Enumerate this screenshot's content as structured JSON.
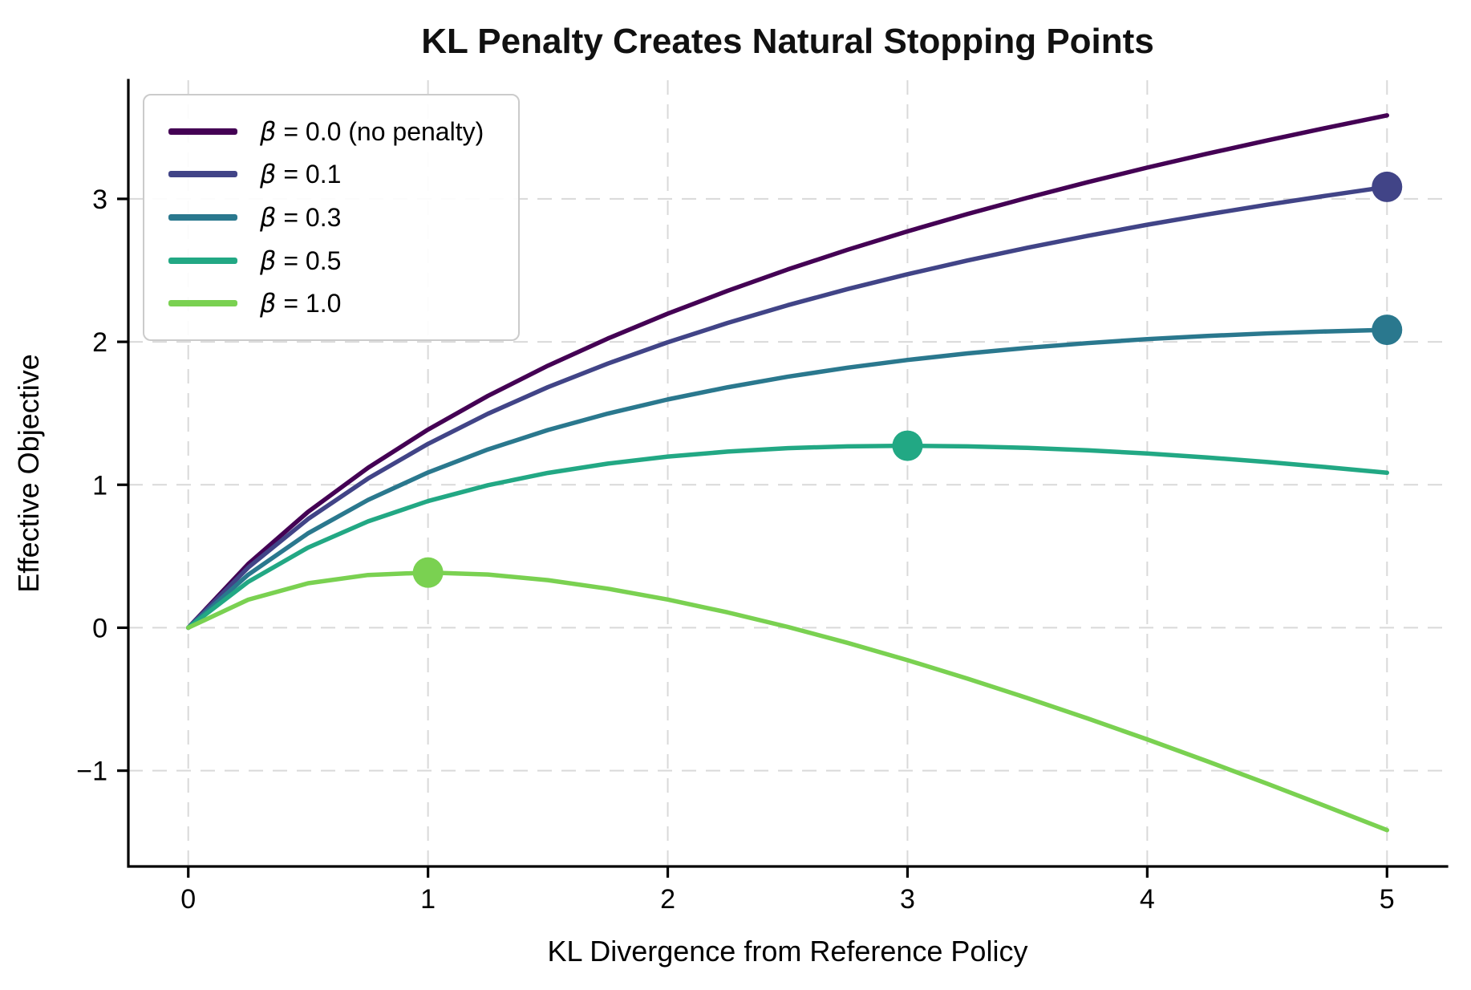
{
  "title": "KL Penalty Creates Natural Stopping Points",
  "axes": {
    "xlabel": "KL Divergence from Reference Policy",
    "ylabel": "Effective Objective",
    "x_ticks": [
      {
        "value": 0,
        "label": "0"
      },
      {
        "value": 1,
        "label": "1"
      },
      {
        "value": 2,
        "label": "2"
      },
      {
        "value": 3,
        "label": "3"
      },
      {
        "value": 4,
        "label": "4"
      },
      {
        "value": 5,
        "label": "5"
      }
    ],
    "y_ticks": [
      {
        "value": -1,
        "label": "−1"
      },
      {
        "value": 0,
        "label": "0"
      },
      {
        "value": 1,
        "label": "1"
      },
      {
        "value": 2,
        "label": "2"
      },
      {
        "value": 3,
        "label": "3"
      }
    ]
  },
  "legend": {
    "items": [
      {
        "symbol": "β",
        "text": " = 0.0 (no penalty)"
      },
      {
        "symbol": "β",
        "text": " = 0.1"
      },
      {
        "symbol": "β",
        "text": " = 0.3"
      },
      {
        "symbol": "β",
        "text": " = 0.5"
      },
      {
        "symbol": "β",
        "text": " = 1.0"
      }
    ]
  },
  "chart_data": {
    "type": "line",
    "title": "KL Penalty Creates Natural Stopping Points",
    "xlabel": "KL Divergence from Reference Policy",
    "ylabel": "Effective Objective",
    "xlim": [
      -0.25,
      5.25
    ],
    "ylim": [
      -1.67,
      3.83
    ],
    "grid": true,
    "grid_style": "dashed",
    "legend_position": "upper left",
    "x": [
      0,
      0.25,
      0.5,
      0.75,
      1,
      1.25,
      1.5,
      1.75,
      2,
      2.25,
      2.5,
      2.75,
      3,
      3.25,
      3.5,
      3.75,
      4,
      4.25,
      4.5,
      4.75,
      5
    ],
    "series": [
      {
        "name": "β = 0.0 (no penalty)",
        "beta": 0.0,
        "color": "#440154",
        "values": [
          0,
          0.446,
          0.811,
          1.119,
          1.386,
          1.622,
          1.833,
          2.023,
          2.197,
          2.357,
          2.506,
          2.644,
          2.773,
          2.894,
          3.008,
          3.116,
          3.219,
          3.316,
          3.409,
          3.498,
          3.584
        ],
        "marker": null
      },
      {
        "name": "β = 0.1",
        "beta": 0.1,
        "color": "#414487",
        "values": [
          0,
          0.421,
          0.761,
          1.044,
          1.286,
          1.497,
          1.683,
          1.848,
          1.997,
          2.132,
          2.256,
          2.369,
          2.473,
          2.569,
          2.658,
          2.741,
          2.819,
          2.891,
          2.959,
          3.023,
          3.084
        ],
        "marker": {
          "x": 5,
          "y": 3.084
        }
      },
      {
        "name": "β = 0.3",
        "beta": 0.3,
        "color": "#2a788e",
        "values": [
          0,
          0.371,
          0.661,
          0.894,
          1.086,
          1.247,
          1.383,
          1.498,
          1.597,
          1.682,
          1.756,
          1.819,
          1.873,
          1.919,
          1.958,
          1.991,
          2.019,
          2.041,
          2.059,
          2.073,
          2.084
        ],
        "marker": {
          "x": 5,
          "y": 2.084
        }
      },
      {
        "name": "β = 0.5",
        "beta": 0.5,
        "color": "#22a884",
        "values": [
          0,
          0.321,
          0.561,
          0.744,
          0.886,
          0.997,
          1.083,
          1.148,
          1.197,
          1.232,
          1.256,
          1.269,
          1.273,
          1.269,
          1.258,
          1.241,
          1.219,
          1.191,
          1.159,
          1.123,
          1.084
        ],
        "marker": {
          "x": 3,
          "y": 1.273
        }
      },
      {
        "name": "β = 1.0",
        "beta": 1.0,
        "color": "#7ad151",
        "values": [
          0,
          0.196,
          0.311,
          0.369,
          0.386,
          0.372,
          0.333,
          0.273,
          0.197,
          0.107,
          0.006,
          -0.106,
          -0.227,
          -0.356,
          -0.492,
          -0.634,
          -0.781,
          -0.934,
          -1.091,
          -1.252,
          -1.416
        ],
        "marker": {
          "x": 1,
          "y": 0.386
        }
      }
    ]
  }
}
